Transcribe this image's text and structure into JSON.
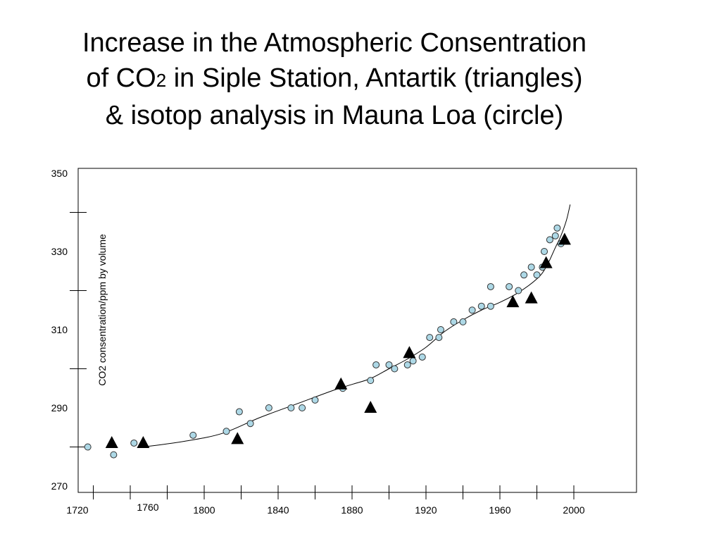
{
  "title": {
    "line1": "Increase in the Atmospheric Consentration",
    "line2_pre": "of CO",
    "line2_sub": "2",
    "line2_post": " in Siple Station, Antartik (triangles)",
    "line3": "& isotop analysis in Mauna Loa (circle)"
  },
  "chart_data": {
    "type": "scatter",
    "ylabel": "CO2 consentration/ppm by volume",
    "xlabel": "",
    "xlim": [
      1720,
      2020
    ],
    "ylim": [
      270,
      350
    ],
    "x_tick_labels": [
      "1720",
      "1760",
      "1800",
      "1840",
      "1880",
      "1920",
      "1960",
      "2000"
    ],
    "y_tick_labels": [
      "270",
      "290",
      "310",
      "330",
      "350"
    ],
    "grid": false,
    "colors": {
      "circle_fill": "#add8e6",
      "triangle_fill": "#000000",
      "line": "#000000"
    },
    "series": [
      {
        "marker": "triangle",
        "points": [
          [
            1750,
            281
          ],
          [
            1767,
            281
          ],
          [
            1818,
            282
          ],
          [
            1874,
            296
          ],
          [
            1890,
            290
          ],
          [
            1911,
            304
          ],
          [
            1967,
            317
          ],
          [
            1977,
            318
          ],
          [
            1985,
            327
          ],
          [
            1995,
            333
          ]
        ]
      },
      {
        "marker": "circle",
        "points": [
          [
            1737,
            280
          ],
          [
            1751,
            278
          ],
          [
            1762,
            281
          ],
          [
            1794,
            283
          ],
          [
            1812,
            284
          ],
          [
            1819,
            289
          ],
          [
            1825,
            286
          ],
          [
            1835,
            290
          ],
          [
            1847,
            290
          ],
          [
            1853,
            290
          ],
          [
            1860,
            292
          ],
          [
            1875,
            295
          ],
          [
            1890,
            297
          ],
          [
            1893,
            301
          ],
          [
            1900,
            301
          ],
          [
            1903,
            300
          ],
          [
            1910,
            301
          ],
          [
            1913,
            302
          ],
          [
            1918,
            303
          ],
          [
            1922,
            308
          ],
          [
            1927,
            308
          ],
          [
            1928,
            310
          ],
          [
            1935,
            312
          ],
          [
            1940,
            312
          ],
          [
            1945,
            315
          ],
          [
            1950,
            316
          ],
          [
            1955,
            316
          ],
          [
            1955,
            321
          ],
          [
            1965,
            321
          ],
          [
            1970,
            320
          ],
          [
            1973,
            324
          ],
          [
            1977,
            326
          ],
          [
            1980,
            324
          ],
          [
            1983,
            326
          ],
          [
            1984,
            330
          ],
          [
            1987,
            333
          ],
          [
            1990,
            334
          ],
          [
            1991,
            336
          ],
          [
            1993,
            332
          ]
        ]
      },
      {
        "marker": "line",
        "points": [
          [
            1767,
            280
          ],
          [
            1790,
            281.5
          ],
          [
            1810,
            283.5
          ],
          [
            1830,
            287.5
          ],
          [
            1850,
            291
          ],
          [
            1870,
            294.5
          ],
          [
            1880,
            296
          ],
          [
            1890,
            297.5
          ],
          [
            1900,
            300
          ],
          [
            1910,
            302.5
          ],
          [
            1920,
            305.5
          ],
          [
            1930,
            309.5
          ],
          [
            1940,
            312.5
          ],
          [
            1950,
            315
          ],
          [
            1960,
            317
          ],
          [
            1970,
            319.5
          ],
          [
            1980,
            323
          ],
          [
            1985,
            326
          ],
          [
            1990,
            331
          ],
          [
            1993,
            334
          ],
          [
            1996,
            338
          ],
          [
            1998,
            342
          ]
        ]
      }
    ]
  }
}
